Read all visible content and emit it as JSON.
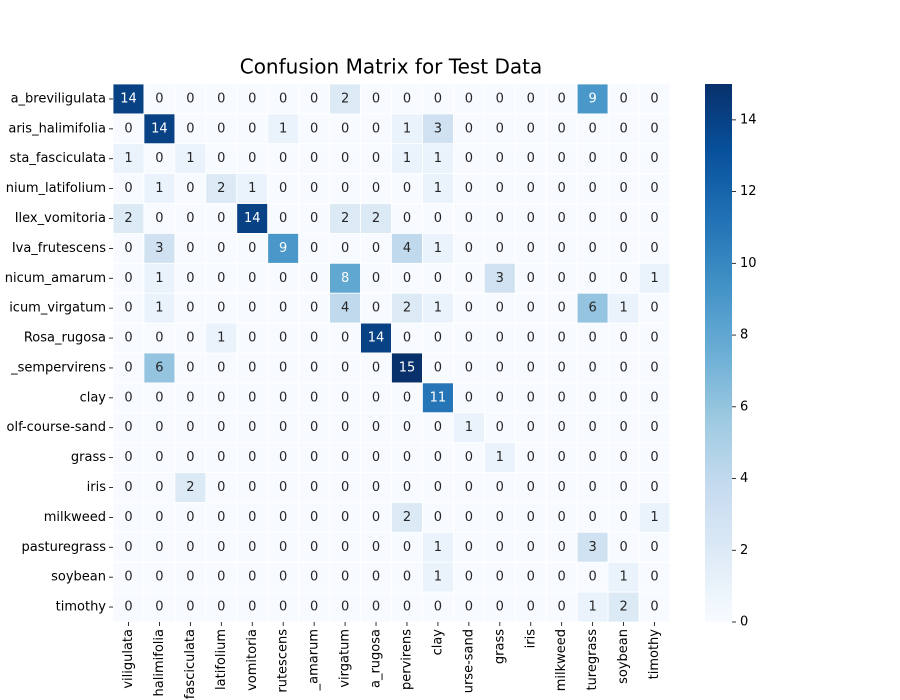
{
  "chart_data": {
    "type": "heatmap",
    "title": "Confusion Matrix for Test Data",
    "y_categories": [
      "a_breviligulata",
      "aris_halimifolia",
      "sta_fasciculata",
      "nium_latifolium",
      "Ilex_vomitoria",
      "Iva_frutescens",
      "nicum_amarum",
      "icum_virgatum",
      "Rosa_rugosa",
      "_sempervirens",
      "clay",
      "olf-course-sand",
      "grass",
      "iris",
      "milkweed",
      "pasturegrass",
      "soybean",
      "timothy"
    ],
    "x_categories": [
      "viligulata",
      "halimifolia",
      "fasciculata",
      "latifolium",
      "vomitoria",
      "rutescens",
      "_amarum",
      "virgatum",
      "a_rugosa",
      "pervirens",
      "clay",
      "urse-sand",
      "grass",
      "iris",
      "milkweed",
      "turegrass",
      "soybean",
      "timothy"
    ],
    "values": [
      [
        14,
        0,
        0,
        0,
        0,
        0,
        0,
        2,
        0,
        0,
        0,
        0,
        0,
        0,
        0,
        9,
        0,
        0
      ],
      [
        0,
        14,
        0,
        0,
        0,
        1,
        0,
        0,
        0,
        1,
        3,
        0,
        0,
        0,
        0,
        0,
        0,
        0
      ],
      [
        1,
        0,
        1,
        0,
        0,
        0,
        0,
        0,
        0,
        1,
        1,
        0,
        0,
        0,
        0,
        0,
        0,
        0
      ],
      [
        0,
        1,
        0,
        2,
        1,
        0,
        0,
        0,
        0,
        0,
        1,
        0,
        0,
        0,
        0,
        0,
        0,
        0
      ],
      [
        2,
        0,
        0,
        0,
        14,
        0,
        0,
        2,
        2,
        0,
        0,
        0,
        0,
        0,
        0,
        0,
        0,
        0
      ],
      [
        0,
        3,
        0,
        0,
        0,
        9,
        0,
        0,
        0,
        4,
        1,
        0,
        0,
        0,
        0,
        0,
        0,
        0
      ],
      [
        0,
        1,
        0,
        0,
        0,
        0,
        0,
        8,
        0,
        0,
        0,
        0,
        3,
        0,
        0,
        0,
        0,
        1
      ],
      [
        0,
        1,
        0,
        0,
        0,
        0,
        0,
        4,
        0,
        2,
        1,
        0,
        0,
        0,
        0,
        6,
        1,
        0
      ],
      [
        0,
        0,
        0,
        1,
        0,
        0,
        0,
        0,
        14,
        0,
        0,
        0,
        0,
        0,
        0,
        0,
        0,
        0
      ],
      [
        0,
        6,
        0,
        0,
        0,
        0,
        0,
        0,
        0,
        15,
        0,
        0,
        0,
        0,
        0,
        0,
        0,
        0
      ],
      [
        0,
        0,
        0,
        0,
        0,
        0,
        0,
        0,
        0,
        0,
        11,
        0,
        0,
        0,
        0,
        0,
        0,
        0
      ],
      [
        0,
        0,
        0,
        0,
        0,
        0,
        0,
        0,
        0,
        0,
        0,
        1,
        0,
        0,
        0,
        0,
        0,
        0
      ],
      [
        0,
        0,
        0,
        0,
        0,
        0,
        0,
        0,
        0,
        0,
        0,
        0,
        1,
        0,
        0,
        0,
        0,
        0
      ],
      [
        0,
        0,
        2,
        0,
        0,
        0,
        0,
        0,
        0,
        0,
        0,
        0,
        0,
        0,
        0,
        0,
        0,
        0
      ],
      [
        0,
        0,
        0,
        0,
        0,
        0,
        0,
        0,
        0,
        2,
        0,
        0,
        0,
        0,
        0,
        0,
        0,
        1
      ],
      [
        0,
        0,
        0,
        0,
        0,
        0,
        0,
        0,
        0,
        0,
        1,
        0,
        0,
        0,
        0,
        3,
        0,
        0
      ],
      [
        0,
        0,
        0,
        0,
        0,
        0,
        0,
        0,
        0,
        0,
        1,
        0,
        0,
        0,
        0,
        0,
        1,
        0
      ],
      [
        0,
        0,
        0,
        0,
        0,
        0,
        0,
        0,
        0,
        0,
        0,
        0,
        0,
        0,
        0,
        1,
        2,
        0
      ]
    ],
    "cmap": "Blues",
    "colorbar": {
      "lim": [
        0,
        15
      ],
      "ticks": [
        0,
        2,
        4,
        6,
        8,
        10,
        12,
        14
      ]
    }
  }
}
